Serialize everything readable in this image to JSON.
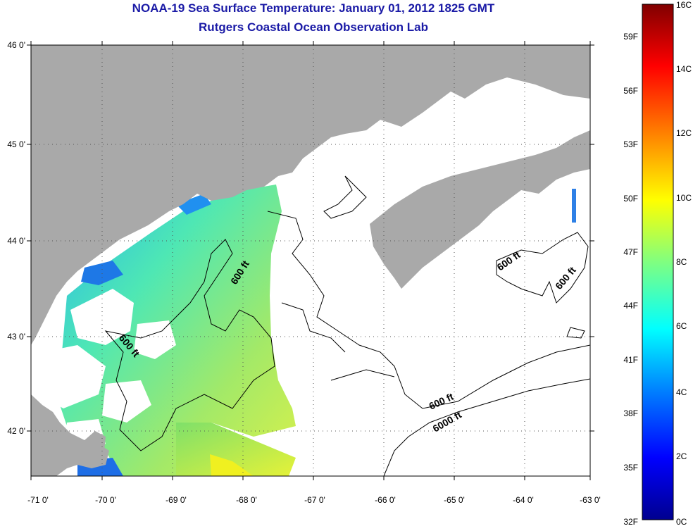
{
  "title": {
    "line1": "NOAA-19 Sea Surface Temperature:  January 01, 2012 1825 GMT",
    "line2": "Rutgers Coastal Ocean Observation Lab"
  },
  "map": {
    "x_ticks": [
      "-71 0'",
      "-70 0'",
      "-69 0'",
      "-68 0'",
      "-67 0'",
      "-66 0'",
      "-65 0'",
      "-64 0'",
      "-63 0'"
    ],
    "y_ticks": [
      "46 0'",
      "45 0'",
      "44 0'",
      "43 0'",
      "42 0'"
    ],
    "contour_labels": [
      {
        "text": "600 ft",
        "id": "contour-600-a"
      },
      {
        "text": "600 ft",
        "id": "contour-600-b"
      },
      {
        "text": "600 ft",
        "id": "contour-600-c"
      },
      {
        "text": "600 ft",
        "id": "contour-600-d"
      },
      {
        "text": "600 ft",
        "id": "contour-600-e"
      },
      {
        "text": "6000 ft",
        "id": "contour-6000"
      }
    ],
    "colors": {
      "land": "#a9a9a9",
      "water_nodata": "#ffffff",
      "contour": "#000000"
    }
  },
  "colorbar": {
    "celsius_labels": [
      "16C",
      "14C",
      "12C",
      "10C",
      "8C",
      "6C",
      "4C",
      "2C",
      "0C"
    ],
    "fahrenheit_labels": [
      "59F",
      "56F",
      "53F",
      "50F",
      "47F",
      "44F",
      "41F",
      "38F",
      "35F",
      "32F"
    ],
    "colors": [
      "#00008f",
      "#0000ff",
      "#0080ff",
      "#00ffff",
      "#80ff80",
      "#ffff00",
      "#ff8000",
      "#ff0000",
      "#800000"
    ]
  }
}
